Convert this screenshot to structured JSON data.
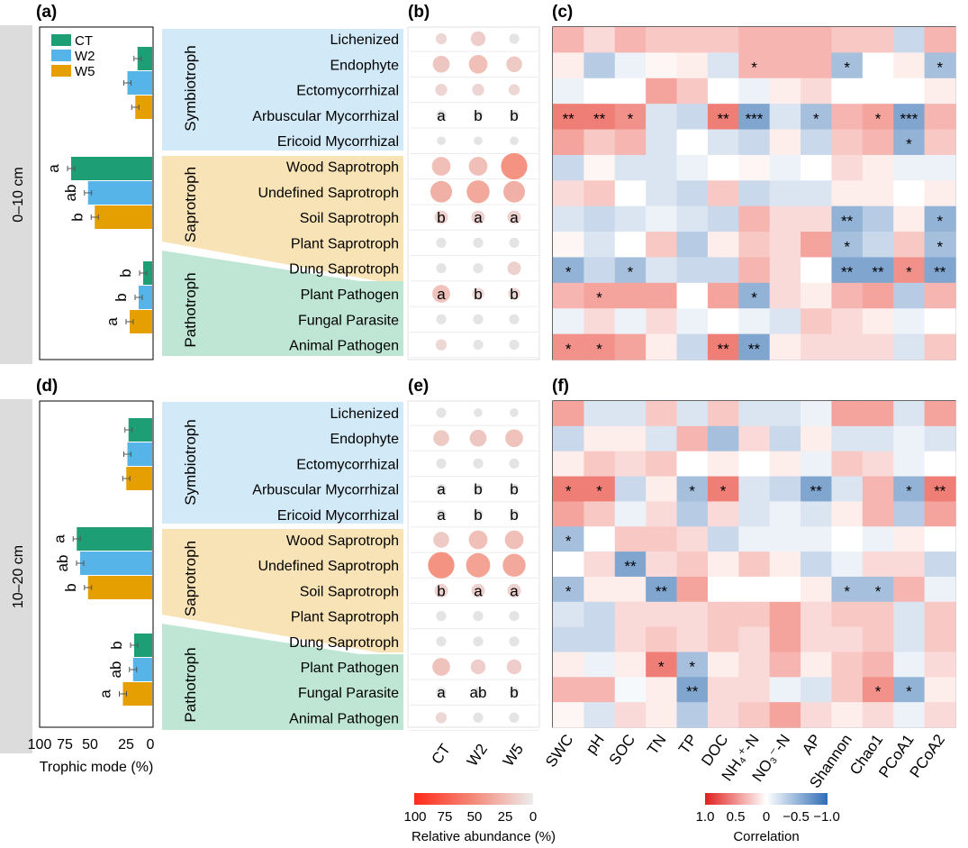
{
  "panel_labels": {
    "a": "(a)",
    "b": "(b)",
    "c": "(c)",
    "d": "(d)",
    "e": "(e)",
    "f": "(f)"
  },
  "depths": [
    "0–10 cm",
    "10–20 cm"
  ],
  "groups": [
    "Symbiotroph",
    "Saprotroph",
    "Pathotroph"
  ],
  "guilds": [
    "Lichenized",
    "Endophyte",
    "Ectomycorrhizal",
    "Arbuscular Mycorrhizal",
    "Ericoid Mycorrhizal",
    "Wood Saprotroph",
    "Undefined Saprotroph",
    "Soil Saprotroph",
    "Plant Saprotroph",
    "Dung Saprotroph",
    "Plant Pathogen",
    "Fungal Parasite",
    "Animal Pathogen"
  ],
  "treatments": [
    "CT",
    "W2",
    "W5"
  ],
  "variables": [
    "SWC",
    "pH",
    "SOC",
    "TN",
    "TP",
    "DOC",
    "NH₄⁺-N",
    "NO₃⁻-N",
    "AP",
    "Shannon",
    "Chao1",
    "PCoA1",
    "PCoA2"
  ],
  "bar_axis": {
    "label": "Trophic mode (%)",
    "ticks": [
      "100",
      "75",
      "50",
      "25",
      "0"
    ]
  },
  "abundance_legend": {
    "label": "Relative abundance (%)",
    "ticks": [
      "100",
      "75",
      "50",
      "25",
      "0"
    ]
  },
  "correlation_legend": {
    "label": "Correlation",
    "ticks": [
      "1.0",
      "0.5",
      "0",
      "−0.5",
      "−1.0"
    ]
  },
  "colors": {
    "CT": "#1e9e74",
    "W2": "#56b4e9",
    "W5": "#e69f00",
    "symbiotroph_bg": "#d2e9f7",
    "saprotroph_bg": "#f8e3b6",
    "pathotroph_bg": "#bfe6d5",
    "pos_corr": "#e8473b",
    "neg_corr": "#4a7ebb",
    "depth_strip": "#dcdcdc"
  },
  "chart_data": [
    {
      "type": "bar",
      "panel": "a",
      "depth": "0–10 cm",
      "categories": [
        "Symbiotroph",
        "Saprotroph",
        "Pathotroph"
      ],
      "series": [
        {
          "name": "CT",
          "values": [
            13,
            72,
            8
          ]
        },
        {
          "name": "W2",
          "values": [
            22,
            57,
            12
          ]
        },
        {
          "name": "W5",
          "values": [
            15,
            51,
            20
          ]
        }
      ],
      "letters": [
        [
          "",
          "",
          ""
        ],
        [
          "a",
          "ab",
          "b"
        ],
        [
          "b",
          "b",
          "a"
        ]
      ],
      "xlim": [
        100,
        0
      ],
      "xlabel": "Trophic mode (%)"
    },
    {
      "type": "bubble",
      "panel": "b",
      "depth": "0–10 cm",
      "xlabel": "",
      "ylabel": "",
      "values": [
        [
          1.5,
          4,
          1
        ],
        [
          6,
          8,
          5
        ],
        [
          2,
          2,
          1.5
        ],
        [
          1,
          1,
          1
        ],
        [
          0.5,
          0.5,
          0.5
        ],
        [
          8,
          8,
          20
        ],
        [
          12,
          14,
          12
        ],
        [
          3,
          3,
          3
        ],
        [
          1,
          1,
          1
        ],
        [
          1,
          1,
          3
        ],
        [
          7,
          2,
          2
        ],
        [
          1,
          1,
          1
        ],
        [
          1.5,
          1,
          1
        ]
      ],
      "letters": [
        [
          "",
          "",
          ""
        ],
        [
          "",
          "",
          ""
        ],
        [
          "",
          "",
          ""
        ],
        [
          "a",
          "b",
          "b"
        ],
        [
          "",
          "",
          ""
        ],
        [
          "",
          "",
          ""
        ],
        [
          "",
          "",
          ""
        ],
        [
          "b",
          "a",
          "a"
        ],
        [
          "",
          "",
          ""
        ],
        [
          "",
          "",
          ""
        ],
        [
          "a",
          "b",
          "b"
        ],
        [
          "",
          "",
          ""
        ],
        [
          "",
          "",
          ""
        ]
      ]
    },
    {
      "type": "heatmap",
      "panel": "c",
      "depth": "0–10 cm",
      "xlabel": "",
      "ylabel": "",
      "values": [
        [
          0.4,
          0.2,
          0.4,
          0.3,
          0.3,
          0.3,
          0.4,
          0.4,
          0.4,
          0.3,
          0.3,
          -0.3,
          0.4
        ],
        [
          0.1,
          -0.4,
          -0.1,
          0.05,
          0.1,
          -0.2,
          0.4,
          0.4,
          0.4,
          -0.5,
          0,
          0.1,
          -0.5
        ],
        [
          -0.1,
          0,
          0,
          0.5,
          0.3,
          0,
          -0.1,
          0.1,
          0.2,
          0,
          0,
          0,
          0.1
        ],
        [
          0.7,
          0.7,
          0.6,
          -0.2,
          -0.3,
          0.7,
          -0.7,
          -0.2,
          -0.5,
          0.4,
          0.5,
          -0.7,
          0.4
        ],
        [
          0.5,
          0.3,
          0.4,
          -0.2,
          0,
          -0.2,
          -0.3,
          0.1,
          -0.3,
          0.3,
          0.4,
          -0.6,
          0.3
        ],
        [
          -0.3,
          0.05,
          -0.2,
          -0.2,
          -0.1,
          0,
          0.05,
          -0.1,
          0,
          0.2,
          0.1,
          -0.1,
          -0.1
        ],
        [
          0.2,
          0.3,
          0,
          -0.2,
          -0.3,
          0.3,
          -0.3,
          -0.2,
          -0.2,
          0.1,
          0.1,
          0,
          0.1
        ],
        [
          -0.2,
          -0.3,
          -0.2,
          -0.1,
          -0.2,
          -0.3,
          0.4,
          0.2,
          0.2,
          -0.6,
          -0.4,
          0.1,
          -0.6
        ],
        [
          0.05,
          -0.2,
          0,
          0.3,
          -0.4,
          0.1,
          0.3,
          0.2,
          0.5,
          -0.5,
          -0.3,
          0.3,
          -0.5
        ],
        [
          -0.6,
          -0.3,
          -0.5,
          -0.2,
          -0.3,
          -0.3,
          0.4,
          0.2,
          0,
          -0.7,
          -0.7,
          0.6,
          -0.7
        ],
        [
          0.4,
          0.5,
          0.5,
          0.5,
          0,
          0.5,
          -0.6,
          0.2,
          0.1,
          0.4,
          0.5,
          -0.4,
          0.4
        ],
        [
          -0.1,
          0.2,
          -0.1,
          0.2,
          -0.1,
          0,
          -0.1,
          -0.2,
          0.3,
          0.2,
          0.1,
          -0.1,
          0
        ],
        [
          0.6,
          0.6,
          0.5,
          0.1,
          -0.3,
          0.7,
          -0.7,
          0.1,
          0.2,
          0.2,
          0.2,
          -0.2,
          0.3
        ]
      ],
      "stars": [
        [
          "",
          "",
          "",
          "",
          "",
          "",
          "",
          "",
          "",
          "",
          "",
          "",
          ""
        ],
        [
          "",
          "",
          "",
          "",
          "",
          "",
          "*",
          "",
          "",
          "*",
          "",
          "",
          "*"
        ],
        [
          "",
          "",
          "",
          "",
          "",
          "",
          "",
          "",
          "",
          "",
          "",
          "",
          ""
        ],
        [
          "**",
          "**",
          "*",
          "",
          "",
          "**",
          "***",
          "",
          "*",
          "",
          "*",
          "***",
          ""
        ],
        [
          "",
          "",
          "",
          "",
          "",
          "",
          "",
          "",
          "",
          "",
          "",
          "*",
          ""
        ],
        [
          "",
          "",
          "",
          "",
          "",
          "",
          "",
          "",
          "",
          "",
          "",
          "",
          ""
        ],
        [
          "",
          "",
          "",
          "",
          "",
          "",
          "",
          "",
          "",
          "",
          "",
          "",
          ""
        ],
        [
          "",
          "",
          "",
          "",
          "",
          "",
          "",
          "",
          "",
          "**",
          "",
          "",
          "*"
        ],
        [
          "",
          "",
          "",
          "",
          "",
          "",
          "",
          "",
          "",
          "*",
          "",
          "",
          "*"
        ],
        [
          "*",
          "",
          "*",
          "",
          "",
          "",
          "",
          "",
          "",
          "**",
          "**",
          "*",
          "**"
        ],
        [
          "",
          "*",
          "",
          "",
          "",
          "",
          "*",
          "",
          "",
          "",
          "",
          "",
          ""
        ],
        [
          "",
          "",
          "",
          "",
          "",
          "",
          "",
          "",
          "",
          "",
          "",
          "",
          ""
        ],
        [
          "*",
          "*",
          "",
          "",
          "",
          "**",
          "**",
          "",
          "",
          "",
          "",
          "",
          ""
        ]
      ]
    },
    {
      "type": "bar",
      "panel": "d",
      "depth": "10–20 cm",
      "categories": [
        "Symbiotroph",
        "Saprotroph",
        "Pathotroph"
      ],
      "series": [
        {
          "name": "CT",
          "values": [
            21,
            67,
            16
          ]
        },
        {
          "name": "W2",
          "values": [
            22,
            64,
            17
          ]
        },
        {
          "name": "W5",
          "values": [
            23,
            57,
            26
          ]
        }
      ],
      "letters": [
        [
          "",
          "",
          ""
        ],
        [
          "a",
          "ab",
          "b"
        ],
        [
          "b",
          "ab",
          "a"
        ]
      ],
      "xlim": [
        100,
        0
      ],
      "xlabel": "Trophic mode (%)"
    },
    {
      "type": "bubble",
      "panel": "e",
      "depth": "10–20 cm",
      "xlabel": "",
      "ylabel": "",
      "values": [
        [
          1,
          0.5,
          0.5
        ],
        [
          5,
          6,
          7
        ],
        [
          1,
          1,
          1
        ],
        [
          1,
          1,
          1
        ],
        [
          1,
          1,
          1
        ],
        [
          5,
          8,
          8
        ],
        [
          20,
          16,
          14
        ],
        [
          3,
          3,
          3
        ],
        [
          1,
          1,
          1
        ],
        [
          1,
          1,
          1
        ],
        [
          7,
          4,
          4
        ],
        [
          1,
          1,
          1
        ],
        [
          1.5,
          1,
          1
        ]
      ],
      "letters": [
        [
          "",
          "",
          ""
        ],
        [
          "",
          "",
          ""
        ],
        [
          "",
          "",
          ""
        ],
        [
          "a",
          "b",
          "b"
        ],
        [
          "a",
          "b",
          "b"
        ],
        [
          "",
          "",
          ""
        ],
        [
          "",
          "",
          ""
        ],
        [
          "b",
          "a",
          "a"
        ],
        [
          "",
          "",
          ""
        ],
        [
          "",
          "",
          ""
        ],
        [
          "",
          "",
          ""
        ],
        [
          "a",
          "ab",
          "b"
        ],
        [
          "",
          "",
          ""
        ]
      ]
    },
    {
      "type": "heatmap",
      "panel": "f",
      "depth": "10–20 cm",
      "xlabel": "",
      "ylabel": "",
      "values": [
        [
          0.5,
          -0.2,
          -0.2,
          0.3,
          -0.2,
          0.3,
          -0.2,
          -0.2,
          -0.1,
          0.5,
          0.5,
          -0.2,
          0.5
        ],
        [
          -0.3,
          0.1,
          0.1,
          -0.2,
          0.4,
          -0.5,
          0.2,
          -0.3,
          0.1,
          -0.2,
          -0.2,
          -0.1,
          -0.2
        ],
        [
          0.1,
          0.3,
          0.2,
          0.3,
          0,
          0.1,
          0,
          0.1,
          -0.1,
          0.3,
          0.2,
          -0.1,
          0
        ],
        [
          0.7,
          0.7,
          -0.3,
          0.1,
          -0.5,
          0.7,
          -0.2,
          -0.3,
          -0.7,
          -0.2,
          0.4,
          -0.6,
          0.7
        ],
        [
          0.5,
          0.3,
          -0.1,
          0.2,
          -0.4,
          0.2,
          -0.2,
          -0.1,
          -0.2,
          0.1,
          0.4,
          -0.4,
          0.5
        ],
        [
          -0.5,
          0,
          0.3,
          0.3,
          0.2,
          -0.3,
          -0.1,
          -0.1,
          -0.1,
          0,
          -0.1,
          0.1,
          0
        ],
        [
          0,
          0.2,
          -0.7,
          0.2,
          0.3,
          0.1,
          0.3,
          0.1,
          -0.3,
          -0.1,
          0.2,
          0.2,
          -0.3
        ],
        [
          -0.5,
          0.1,
          0.1,
          -0.7,
          0.5,
          0,
          0,
          0,
          0.1,
          -0.5,
          -0.5,
          0.4,
          -0.1
        ],
        [
          -0.2,
          -0.3,
          0.2,
          0.2,
          0.2,
          0.3,
          0.3,
          0.5,
          0.2,
          0.3,
          0.3,
          -0.2,
          0.3
        ],
        [
          -0.3,
          -0.3,
          0.2,
          0.3,
          0.2,
          0.3,
          0.2,
          0.5,
          0.2,
          0.2,
          0.3,
          -0.2,
          0.3
        ],
        [
          0.1,
          -0.1,
          0.1,
          0.7,
          -0.5,
          0.1,
          0.2,
          0.4,
          0.1,
          0.3,
          0.4,
          -0.1,
          0.2
        ],
        [
          0.4,
          0.4,
          -0.05,
          0.1,
          -0.7,
          0.2,
          0.2,
          -0.1,
          -0.2,
          0.3,
          0.6,
          -0.6,
          0.1
        ],
        [
          0.05,
          -0.2,
          0.2,
          0.1,
          -0.4,
          0.2,
          0.3,
          0.5,
          0.2,
          0.1,
          0.2,
          -0.1,
          0.2
        ]
      ],
      "stars": [
        [
          "",
          "",
          "",
          "",
          "",
          "",
          "",
          "",
          "",
          "",
          "",
          "",
          ""
        ],
        [
          "",
          "",
          "",
          "",
          "",
          "",
          "",
          "",
          "",
          "",
          "",
          "",
          ""
        ],
        [
          "",
          "",
          "",
          "",
          "",
          "",
          "",
          "",
          "",
          "",
          "",
          "",
          ""
        ],
        [
          "*",
          "*",
          "",
          "",
          "*",
          "*",
          "",
          "",
          "**",
          "",
          "",
          "*",
          "**"
        ],
        [
          "",
          "",
          "",
          "",
          "",
          "",
          "",
          "",
          "",
          "",
          "",
          "",
          ""
        ],
        [
          "*",
          "",
          "",
          "",
          "",
          "",
          "",
          "",
          "",
          "",
          "",
          "",
          ""
        ],
        [
          "",
          "",
          "**",
          "",
          "",
          "",
          "",
          "",
          "",
          "",
          "",
          "",
          ""
        ],
        [
          "*",
          "",
          "",
          "**",
          "",
          "",
          "",
          "",
          "",
          "*",
          "*",
          "",
          ""
        ],
        [
          "",
          "",
          "",
          "",
          "",
          "",
          "",
          "",
          "",
          "",
          "",
          "",
          ""
        ],
        [
          "",
          "",
          "",
          "",
          "",
          "",
          "",
          "",
          "",
          "",
          "",
          "",
          ""
        ],
        [
          "",
          "",
          "",
          "*",
          "*",
          "",
          "",
          "",
          "",
          "",
          "",
          "",
          ""
        ],
        [
          "",
          "",
          "",
          "",
          "**",
          "",
          "",
          "",
          "",
          "",
          "*",
          "*",
          ""
        ],
        [
          "",
          "",
          "",
          "",
          "",
          "",
          "",
          "",
          "",
          "",
          "",
          "",
          ""
        ]
      ]
    }
  ]
}
